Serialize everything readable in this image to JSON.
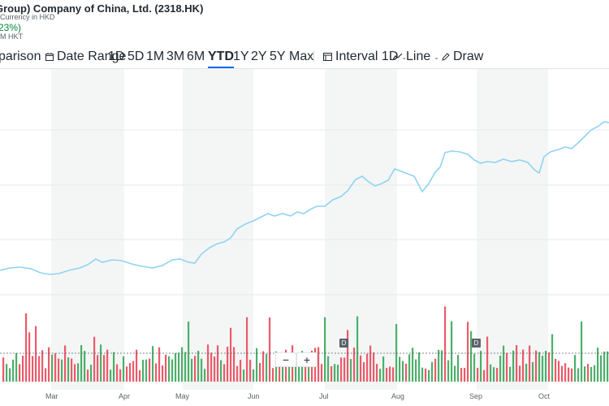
{
  "header": {
    "title": "Group) Company of China, Ltd. (2318.HK)",
    "currency": "Currency in HKD",
    "change": "23%)",
    "time": "M HKT"
  },
  "toolbar": {
    "comparison": "parison",
    "date_range": "Date Range",
    "ranges": [
      "1D",
      "5D",
      "1M",
      "3M",
      "6M",
      "YTD",
      "1Y",
      "2Y",
      "5Y",
      "Max"
    ],
    "active_range": "YTD",
    "interval": "Interval 1D",
    "line": "Line",
    "draw": "Draw"
  },
  "zoom": {
    "minus": "−",
    "plus": "+"
  },
  "markers": [
    "D",
    "D"
  ],
  "colors": {
    "line": "#8fd3f3",
    "up": "#4caf6a",
    "down": "#ec5a6a",
    "band": "#f4f6f5"
  },
  "chart_data": {
    "type": "line",
    "x_labels": [
      "Mar",
      "Apr",
      "May",
      "Jun",
      "Jul",
      "Aug",
      "Sep",
      "Oct"
    ],
    "price_trend": "rising from early March to late October",
    "volume_bars": "green (up) and red (down) daily volume bars at bottom"
  }
}
